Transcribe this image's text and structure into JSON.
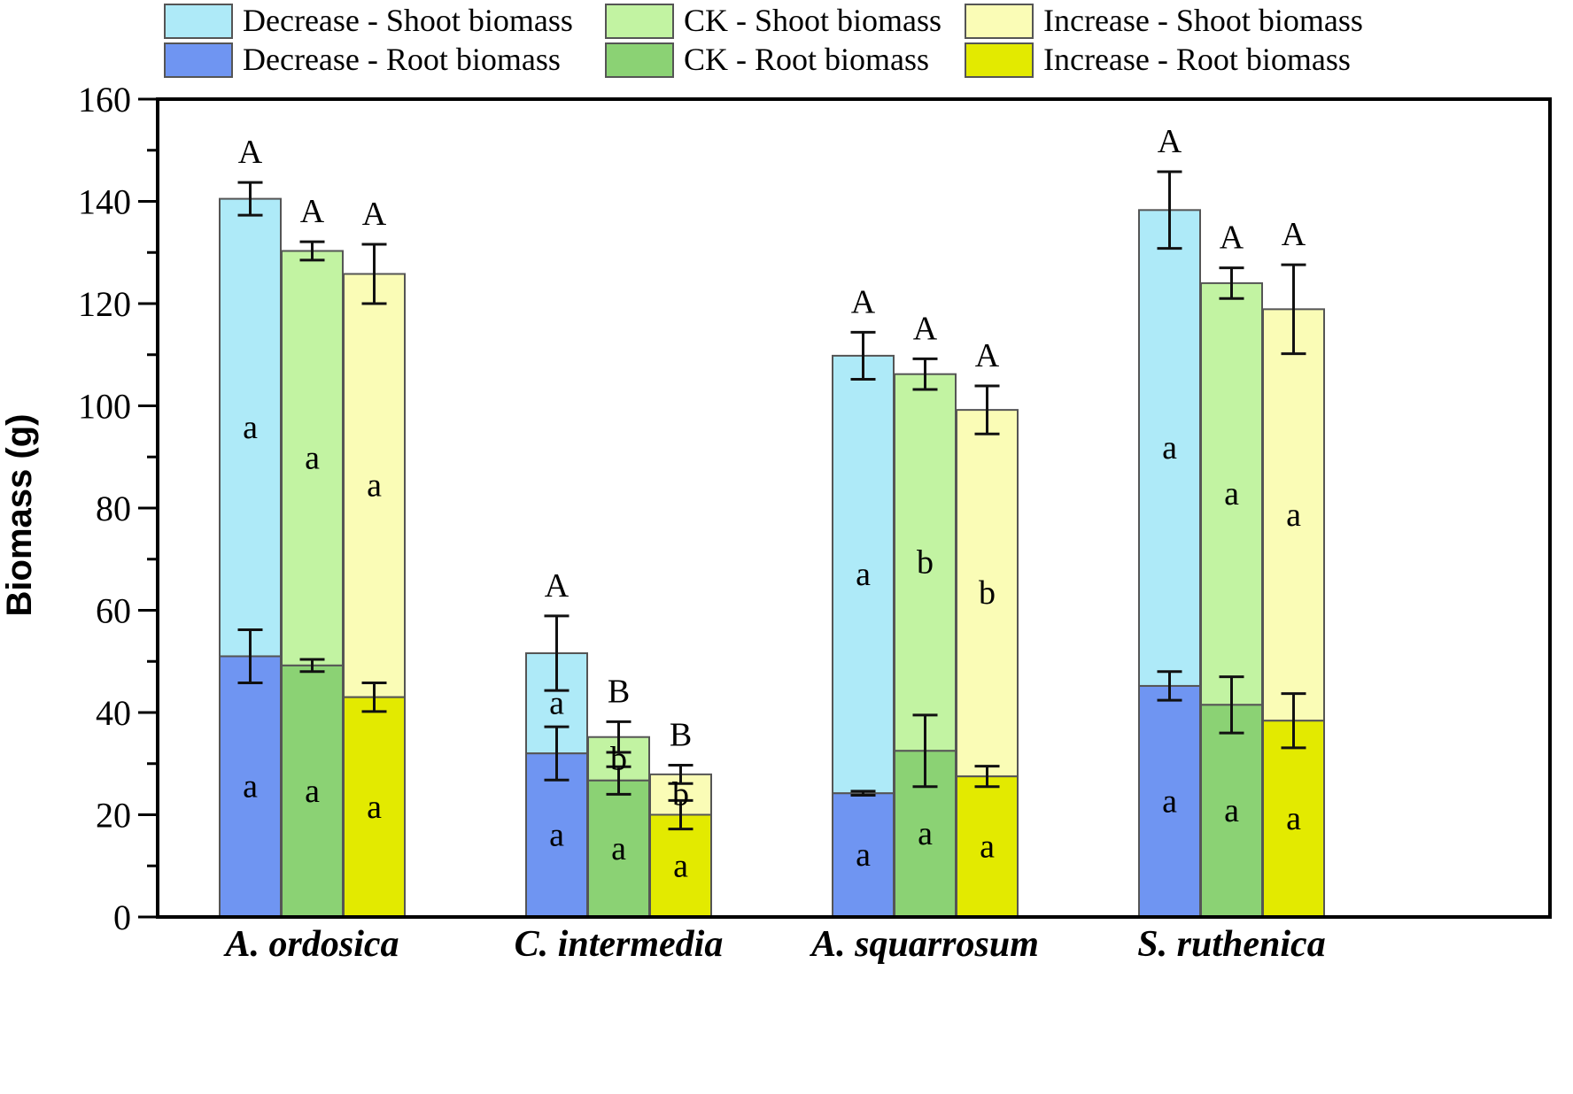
{
  "chart_data": {
    "type": "bar",
    "stacked": true,
    "ylabel": "Biomass (g)",
    "xlabel": "",
    "ylim": [
      0,
      160
    ],
    "yticks": [
      0,
      20,
      40,
      60,
      80,
      100,
      120,
      140,
      160
    ],
    "legend_position": "top",
    "categories": [
      "A. ordosica",
      "C. intermedia",
      "A. squarrosum",
      "S. ruthenica"
    ],
    "treatments": [
      {
        "name": "Decrease",
        "root_label": "Decrease - Root biomass",
        "shoot_label": "Decrease - Shoot biomass",
        "root_color": "#6f95f2",
        "shoot_color": "#aeeaf8",
        "root_values": [
          51.0,
          32.0,
          24.2,
          45.2
        ],
        "root_err": [
          5.2,
          5.2,
          0.4,
          2.8
        ],
        "total_values": [
          140.5,
          51.6,
          109.8,
          138.3
        ],
        "total_err": [
          3.2,
          7.3,
          4.6,
          7.5
        ],
        "root_letters": [
          "a",
          "a",
          "a",
          "a"
        ],
        "shoot_letters": [
          "a",
          "a",
          "a",
          "a"
        ],
        "total_letters": [
          "A",
          "A",
          "A",
          "A"
        ]
      },
      {
        "name": "CK",
        "root_label": "CK - Root biomass",
        "shoot_label": "CK - Shoot biomass",
        "root_color": "#8bd274",
        "shoot_color": "#c2f3a2",
        "root_values": [
          49.2,
          26.7,
          32.5,
          41.5
        ],
        "root_err": [
          1.2,
          2.7,
          7.0,
          5.5
        ],
        "total_values": [
          130.3,
          35.2,
          106.2,
          124.0
        ],
        "total_err": [
          1.8,
          3.0,
          3.0,
          3.0
        ],
        "root_letters": [
          "a",
          "a",
          "a",
          "a"
        ],
        "shoot_letters": [
          "a",
          "b",
          "b",
          "a"
        ],
        "total_letters": [
          "A",
          "B",
          "A",
          "A"
        ]
      },
      {
        "name": "Increase",
        "root_label": "Increase - Root biomass",
        "shoot_label": "Increase - Shoot biomass",
        "root_color": "#e3ea00",
        "shoot_color": "#fafcb6",
        "root_values": [
          43.0,
          20.0,
          27.5,
          38.4
        ],
        "root_err": [
          2.8,
          2.8,
          2.0,
          5.3
        ],
        "total_values": [
          125.8,
          27.9,
          99.2,
          118.9
        ],
        "total_err": [
          5.8,
          1.8,
          4.7,
          8.7
        ],
        "root_letters": [
          "a",
          "a",
          "a",
          "a"
        ],
        "shoot_letters": [
          "a",
          "b",
          "b",
          "a"
        ],
        "total_letters": [
          "A",
          "B",
          "A",
          "A"
        ]
      }
    ]
  }
}
